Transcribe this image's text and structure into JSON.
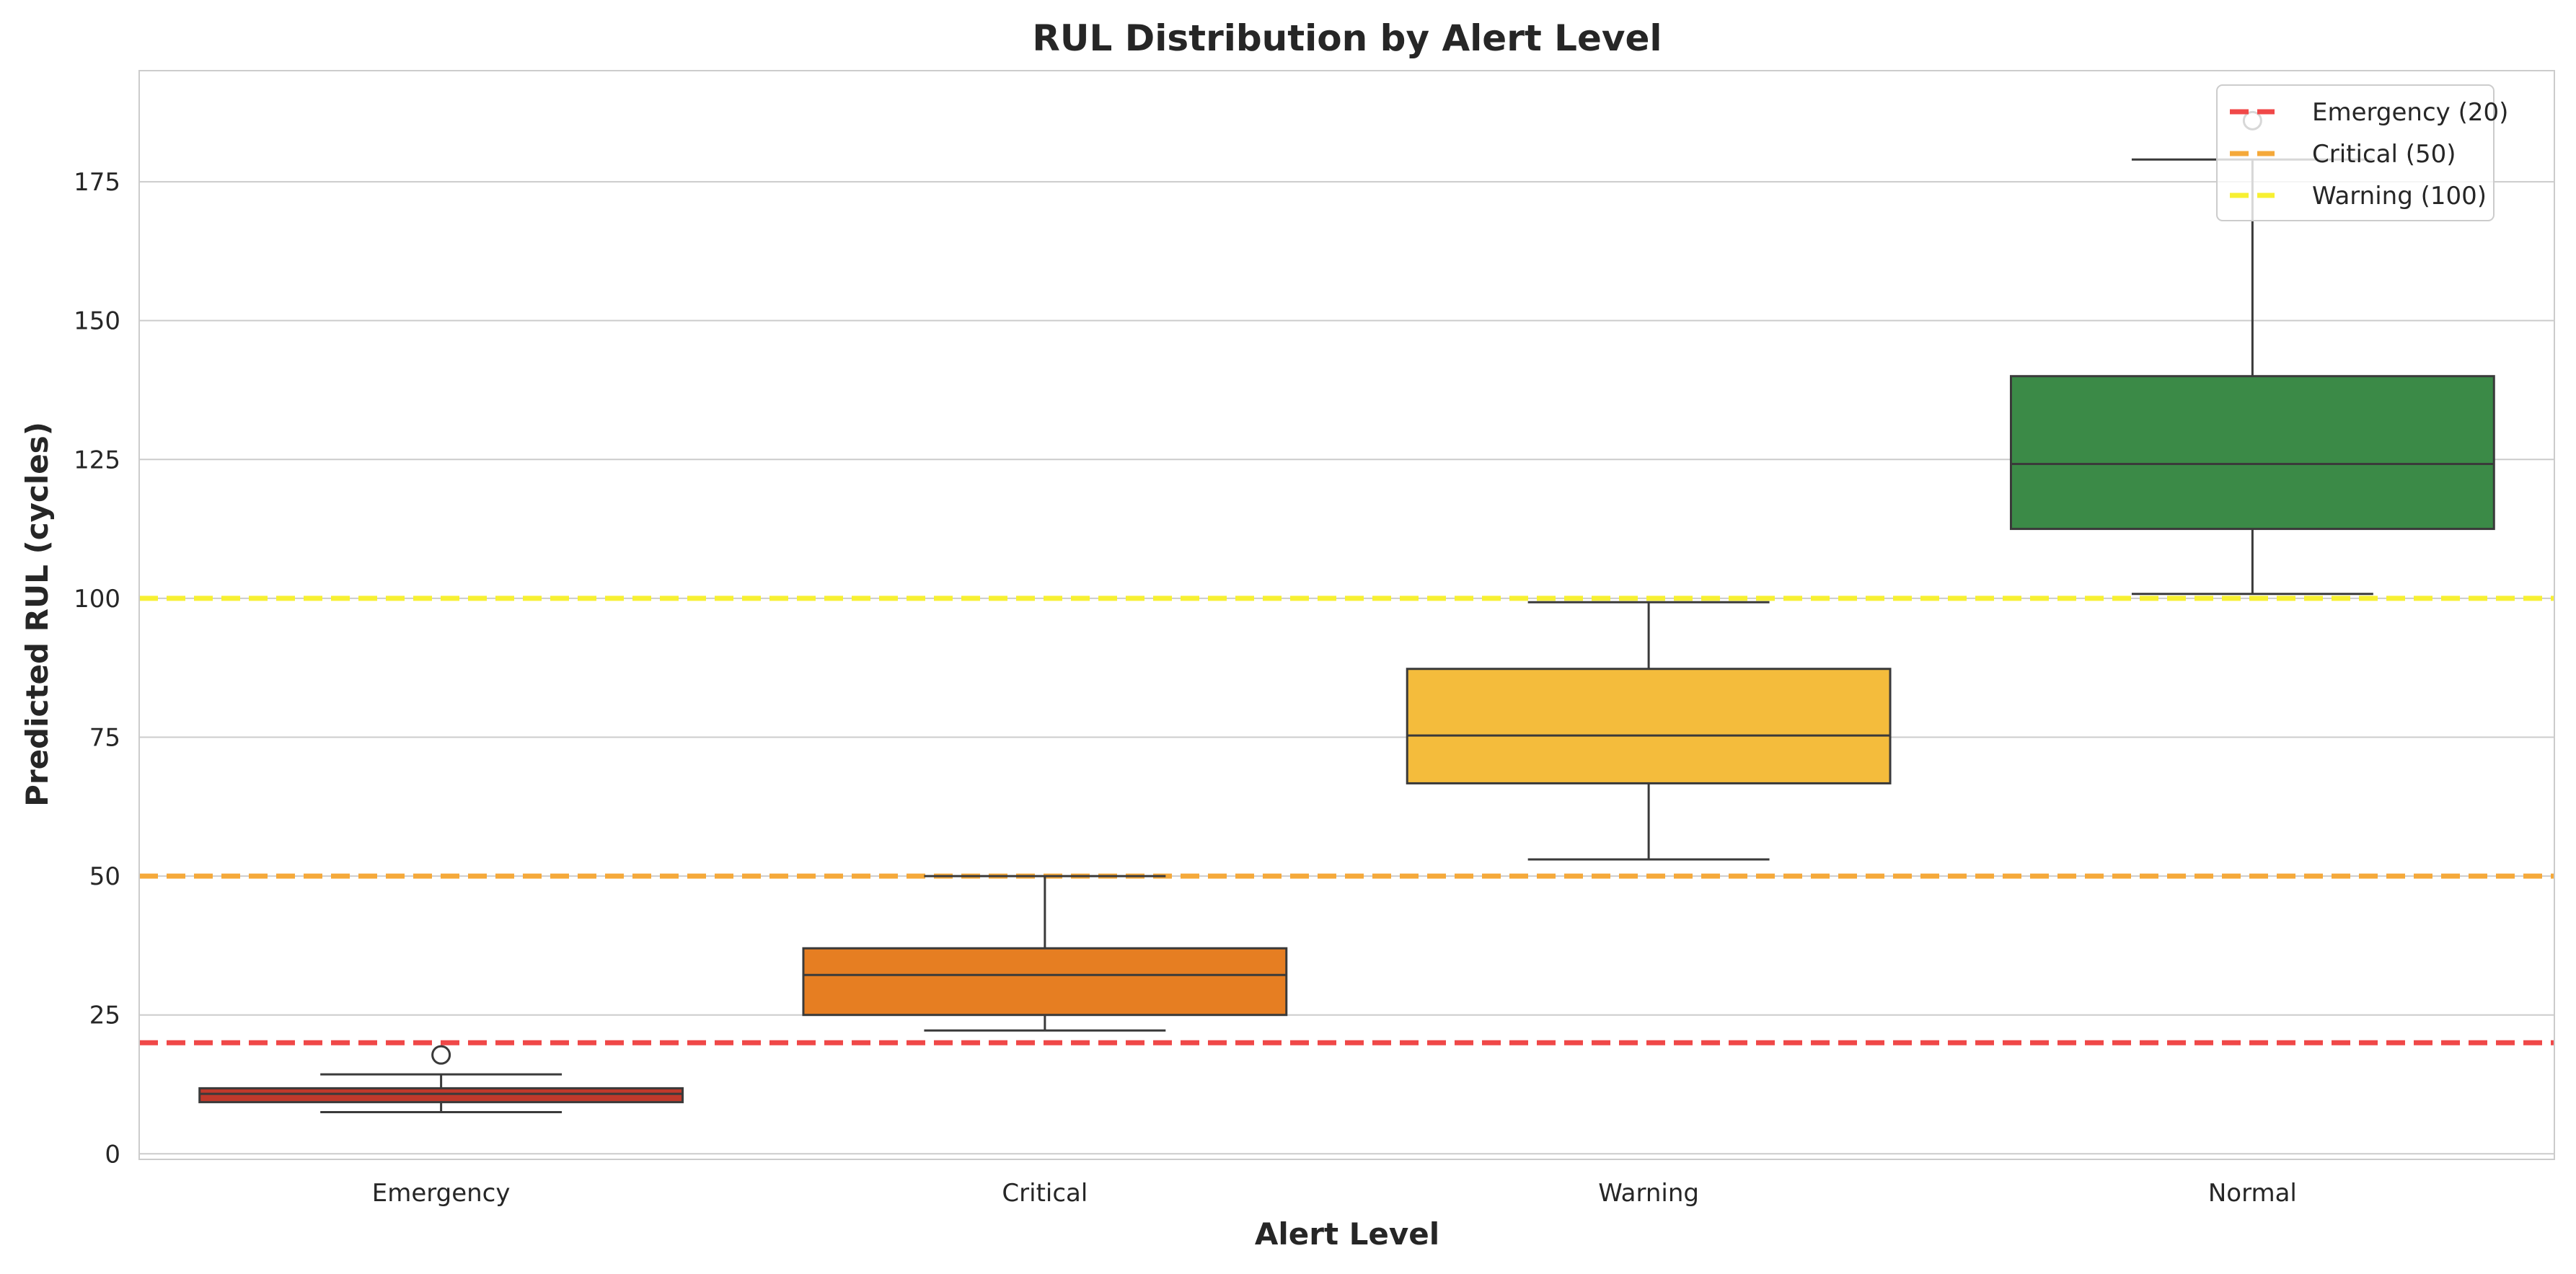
{
  "chart_data": {
    "type": "box",
    "title": "RUL Distribution by Alert Level",
    "xlabel": "Alert Level",
    "ylabel": "Predicted RUL (cycles)",
    "ylim": [
      -1,
      195
    ],
    "yticks": [
      0,
      25,
      50,
      75,
      100,
      125,
      150,
      175
    ],
    "grid": "y",
    "legend_position": "top-right",
    "categories": [
      "Emergency",
      "Critical",
      "Warning",
      "Normal"
    ],
    "boxes": [
      {
        "category": "Emergency",
        "color": "#c0392b",
        "whisker_low": 7.5,
        "q1": 9.3,
        "median": 10.8,
        "q3": 11.8,
        "whisker_high": 14.3,
        "outliers": [
          17.8
        ]
      },
      {
        "category": "Critical",
        "color": "#e67e22",
        "whisker_low": 22.2,
        "q1": 25.0,
        "median": 32.2,
        "q3": 37.0,
        "whisker_high": 50.0,
        "outliers": []
      },
      {
        "category": "Warning",
        "color": "#f4bc3c",
        "whisker_low": 53.0,
        "q1": 66.7,
        "median": 75.3,
        "q3": 87.3,
        "whisker_high": 99.3,
        "outliers": []
      },
      {
        "category": "Normal",
        "color": "#3b8a47",
        "whisker_low": 100.8,
        "q1": 112.5,
        "median": 124.2,
        "q3": 140.0,
        "whisker_high": 179.0,
        "outliers": [
          186.0
        ]
      }
    ],
    "thresholds": [
      {
        "label": "Emergency (20)",
        "value": 20,
        "color": "#f04848"
      },
      {
        "label": "Critical (50)",
        "value": 50,
        "color": "#f5a93a"
      },
      {
        "label": "Warning (100)",
        "value": 100,
        "color": "#f7f032"
      }
    ]
  }
}
